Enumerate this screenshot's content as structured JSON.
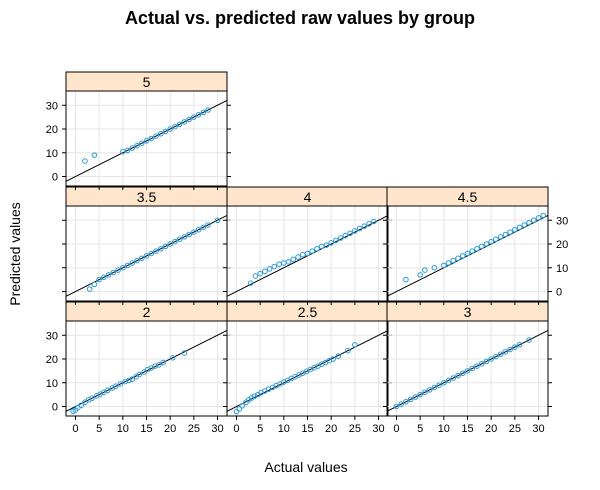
{
  "chart_data": {
    "type": "scatter",
    "title": "Actual vs. predicted raw values by  group",
    "xlabel": "Actual values",
    "ylabel": "Predicted values",
    "xlim": [
      -2,
      32
    ],
    "ylim": [
      -4,
      36
    ],
    "x_ticks": [
      0,
      5,
      10,
      15,
      20,
      25,
      30
    ],
    "y_ticks": [
      0,
      10,
      20,
      30
    ],
    "grid": true,
    "reference_line": {
      "slope": 1,
      "intercept": 0
    },
    "colors": {
      "point": "#2b9bd6",
      "strip": "#ffe5cc",
      "line": "#000000",
      "grid": "#e6e6e6"
    },
    "panels": [
      {
        "group": "2",
        "points": [
          [
            -0.5,
            -2
          ],
          [
            0,
            -1.5
          ],
          [
            0.5,
            -0.5
          ],
          [
            1.2,
            0.5
          ],
          [
            2,
            1.8
          ],
          [
            2.8,
            2.8
          ],
          [
            3.5,
            3.5
          ],
          [
            4.5,
            4.5
          ],
          [
            5.2,
            5.2
          ],
          [
            6,
            6
          ],
          [
            6.8,
            6.8
          ],
          [
            7.8,
            7.8
          ],
          [
            8.5,
            8.5
          ],
          [
            9.5,
            9.5
          ],
          [
            10.5,
            10.5
          ],
          [
            11.3,
            11
          ],
          [
            12,
            11.5
          ],
          [
            12.8,
            12.5
          ],
          [
            13.5,
            13.5
          ],
          [
            14.5,
            14.5
          ],
          [
            15.2,
            15.5
          ],
          [
            16,
            16.2
          ],
          [
            16.8,
            17
          ],
          [
            17.6,
            17.5
          ],
          [
            18.5,
            18.5
          ],
          [
            20.5,
            20.5
          ],
          [
            23,
            22.5
          ]
        ]
      },
      {
        "group": "2.5",
        "points": [
          [
            0,
            -2.2
          ],
          [
            0.6,
            -1
          ],
          [
            1.2,
            0.3
          ],
          [
            2,
            1.8
          ],
          [
            2.6,
            2.8
          ],
          [
            3.2,
            3.6
          ],
          [
            3.8,
            4.3
          ],
          [
            4.5,
            5
          ],
          [
            5.2,
            5.8
          ],
          [
            6,
            6.5
          ],
          [
            6.8,
            7.3
          ],
          [
            7.6,
            8
          ],
          [
            8.4,
            8.8
          ],
          [
            9.2,
            9.5
          ],
          [
            10,
            10.3
          ],
          [
            10.8,
            11
          ],
          [
            11.6,
            11.8
          ],
          [
            12.4,
            12.5
          ],
          [
            13.2,
            13.3
          ],
          [
            14,
            14
          ],
          [
            14.8,
            14.8
          ],
          [
            15.6,
            15.6
          ],
          [
            16.4,
            16.3
          ],
          [
            17.2,
            17
          ],
          [
            18,
            17.8
          ],
          [
            18.8,
            18.5
          ],
          [
            19.6,
            19.3
          ],
          [
            20.4,
            20
          ],
          [
            21.5,
            21.2
          ],
          [
            23.5,
            23.5
          ],
          [
            25,
            26
          ]
        ]
      },
      {
        "group": "3",
        "points": [
          [
            0,
            0
          ],
          [
            1,
            1
          ],
          [
            2,
            2
          ],
          [
            3,
            3
          ],
          [
            4,
            4
          ],
          [
            5,
            5
          ],
          [
            6,
            6
          ],
          [
            7,
            7
          ],
          [
            8,
            8
          ],
          [
            9,
            9
          ],
          [
            10,
            10
          ],
          [
            11,
            11
          ],
          [
            12,
            12
          ],
          [
            13,
            13
          ],
          [
            14,
            14
          ],
          [
            15,
            15
          ],
          [
            16,
            16
          ],
          [
            17,
            17
          ],
          [
            18,
            18
          ],
          [
            19,
            19
          ],
          [
            20,
            20
          ],
          [
            21,
            21
          ],
          [
            22,
            22
          ],
          [
            23,
            23
          ],
          [
            24,
            24
          ],
          [
            25,
            25
          ],
          [
            26,
            26
          ],
          [
            28,
            28
          ]
        ]
      },
      {
        "group": "3.5",
        "points": [
          [
            3,
            1
          ],
          [
            4,
            3
          ],
          [
            5,
            5
          ],
          [
            6,
            6
          ],
          [
            7,
            7
          ],
          [
            8,
            8
          ],
          [
            9,
            9
          ],
          [
            10,
            10
          ],
          [
            11,
            11
          ],
          [
            12,
            12
          ],
          [
            13,
            13
          ],
          [
            14,
            14
          ],
          [
            15,
            15
          ],
          [
            16,
            16
          ],
          [
            17,
            17
          ],
          [
            18,
            18
          ],
          [
            19,
            19
          ],
          [
            20,
            20
          ],
          [
            21,
            21
          ],
          [
            22,
            22
          ],
          [
            23,
            23
          ],
          [
            24,
            24
          ],
          [
            25,
            25
          ],
          [
            26,
            26
          ],
          [
            27,
            27
          ],
          [
            28,
            28
          ],
          [
            30,
            30
          ]
        ]
      },
      {
        "group": "4",
        "points": [
          [
            3,
            3.5
          ],
          [
            4,
            6.5
          ],
          [
            5,
            7.5
          ],
          [
            6,
            8.5
          ],
          [
            7,
            9.5
          ],
          [
            8,
            10.5
          ],
          [
            9,
            11.5
          ],
          [
            10,
            12
          ],
          [
            11,
            12.5
          ],
          [
            12,
            13.5
          ],
          [
            13,
            14.5
          ],
          [
            14,
            15.5
          ],
          [
            15,
            16
          ],
          [
            16,
            17
          ],
          [
            17,
            18
          ],
          [
            18,
            19
          ],
          [
            19,
            19.5
          ],
          [
            20,
            20.5
          ],
          [
            21,
            21.5
          ],
          [
            22,
            22.5
          ],
          [
            23,
            23.5
          ],
          [
            24,
            24.5
          ],
          [
            25,
            25.5
          ],
          [
            26,
            26.5
          ],
          [
            27,
            27.5
          ],
          [
            28,
            28.5
          ],
          [
            29,
            29.5
          ]
        ]
      },
      {
        "group": "4.5",
        "points": [
          [
            2,
            5
          ],
          [
            5,
            7
          ],
          [
            6,
            9
          ],
          [
            8,
            10
          ],
          [
            10,
            11
          ],
          [
            11,
            12
          ],
          [
            12,
            13
          ],
          [
            13,
            14
          ],
          [
            14,
            15
          ],
          [
            15,
            16
          ],
          [
            16,
            17
          ],
          [
            17,
            18
          ],
          [
            18,
            19
          ],
          [
            19,
            20
          ],
          [
            20,
            21
          ],
          [
            21,
            22
          ],
          [
            22,
            23
          ],
          [
            23,
            24
          ],
          [
            24,
            25
          ],
          [
            25,
            26
          ],
          [
            26,
            27
          ],
          [
            27,
            28
          ],
          [
            28,
            29
          ],
          [
            29,
            30
          ],
          [
            30,
            31
          ],
          [
            31,
            32
          ]
        ]
      },
      {
        "group": "5",
        "points": [
          [
            2,
            6.5
          ],
          [
            4,
            9
          ],
          [
            10,
            10.5
          ],
          [
            11,
            11
          ],
          [
            12,
            12
          ],
          [
            13,
            13
          ],
          [
            14,
            14
          ],
          [
            15,
            15
          ],
          [
            16,
            16
          ],
          [
            17,
            17
          ],
          [
            18,
            18
          ],
          [
            19,
            19
          ],
          [
            20,
            20
          ],
          [
            21,
            21
          ],
          [
            22,
            22
          ],
          [
            23,
            23
          ],
          [
            24,
            24
          ],
          [
            25,
            25
          ],
          [
            26,
            26
          ],
          [
            27,
            27
          ],
          [
            28,
            28
          ]
        ]
      }
    ]
  }
}
